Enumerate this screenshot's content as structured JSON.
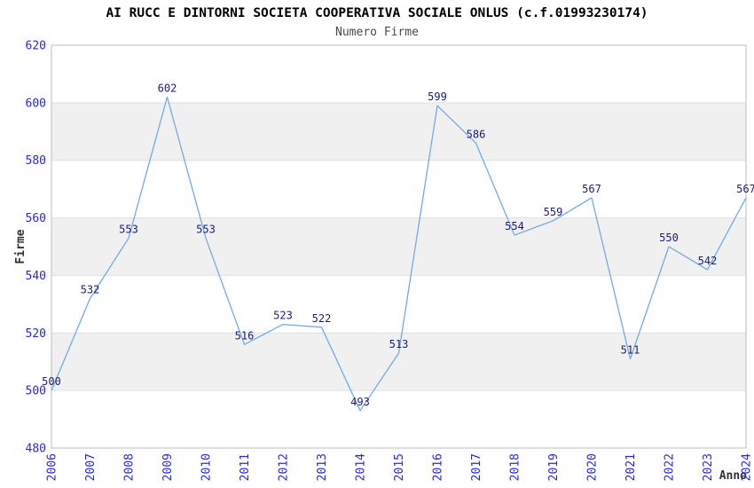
{
  "title": "AI RUCC E DINTORNI SOCIETA COOPERATIVA SOCIALE ONLUS (c.f.01993230174)",
  "subtitle": "Numero Firme",
  "chart_data": {
    "type": "line",
    "x": [
      2006,
      2007,
      2008,
      2009,
      2010,
      2011,
      2012,
      2013,
      2014,
      2015,
      2016,
      2017,
      2018,
      2019,
      2020,
      2021,
      2022,
      2023,
      2024
    ],
    "values": [
      500,
      532,
      553,
      602,
      553,
      516,
      523,
      522,
      493,
      513,
      599,
      586,
      554,
      559,
      567,
      511,
      550,
      542,
      567
    ],
    "title": "AI RUCC E DINTORNI SOCIETA COOPERATIVA SOCIALE ONLUS (c.f.01993230174)",
    "subtitle": "Numero Firme",
    "xlabel": "Anno",
    "ylabel": "Firme",
    "ylim": [
      480,
      620
    ],
    "yticks": [
      480,
      500,
      520,
      540,
      560,
      580,
      600,
      620
    ],
    "grid": true,
    "legend": "none",
    "colors": {
      "line": "#74aae4",
      "point_label": "#1c1c78",
      "tick_label": "#2a2ad0",
      "band": "#f0f0f0",
      "gridline": "#e0e0e0",
      "border": "#bdbdbd",
      "title": "#000000",
      "subtitle": "#4a4a4a",
      "axis_label": "#333333",
      "background": "#ffffff"
    }
  }
}
